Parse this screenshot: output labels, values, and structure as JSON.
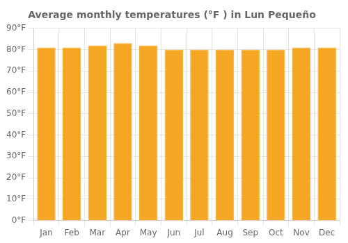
{
  "chart_data": {
    "type": "bar",
    "title": "Average monthly temperatures (°F ) in Lun Pequeño",
    "categories": [
      "Jan",
      "Feb",
      "Mar",
      "Apr",
      "May",
      "Jun",
      "Jul",
      "Aug",
      "Sep",
      "Oct",
      "Nov",
      "Dec"
    ],
    "values": [
      81,
      81,
      82,
      83,
      82,
      80,
      80,
      80,
      80,
      80,
      81,
      81
    ],
    "color": "#F5A623",
    "ylim": [
      0,
      90
    ],
    "yticks": [
      {
        "value": 0,
        "label": "0°F"
      },
      {
        "value": 10,
        "label": "10°F"
      },
      {
        "value": 20,
        "label": "20°F"
      },
      {
        "value": 30,
        "label": "30°F"
      },
      {
        "value": 40,
        "label": "40°F"
      },
      {
        "value": 50,
        "label": "50°F"
      },
      {
        "value": 60,
        "label": "60°F"
      },
      {
        "value": 70,
        "label": "70°F"
      },
      {
        "value": 80,
        "label": "80°F"
      },
      {
        "value": 90,
        "label": "90°F"
      }
    ],
    "grid": true
  }
}
